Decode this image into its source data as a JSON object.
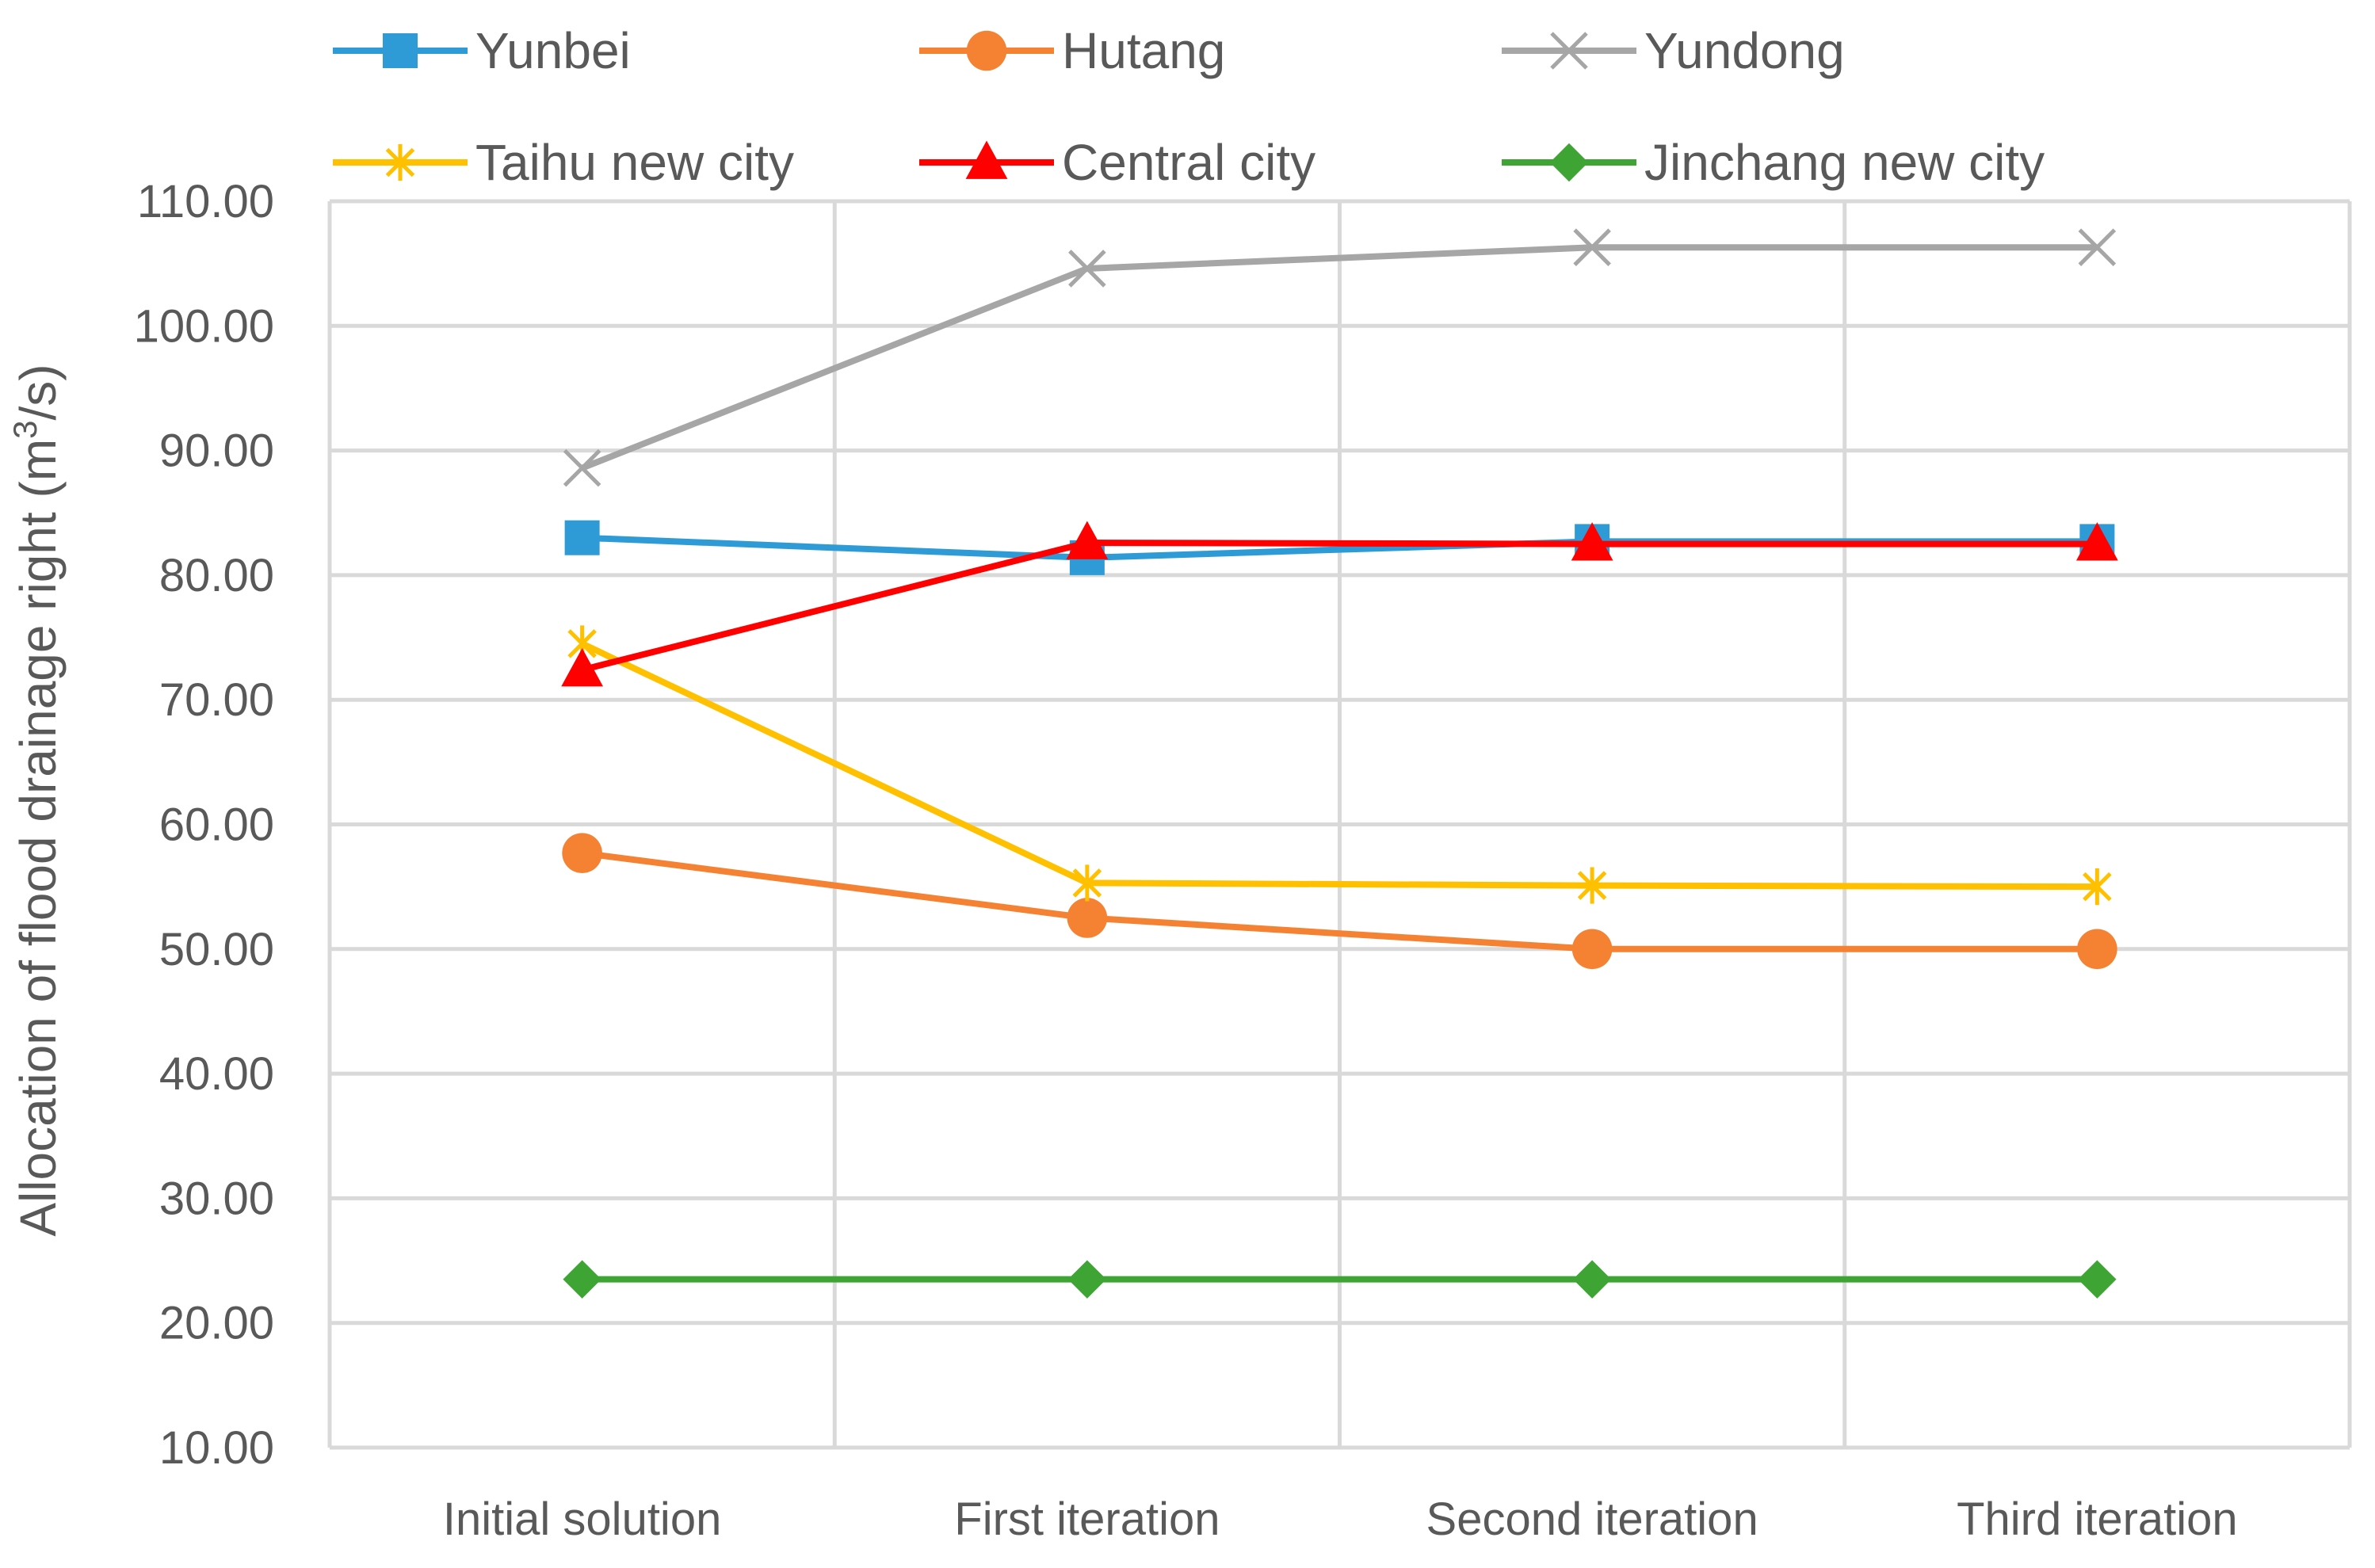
{
  "chart_data": {
    "type": "line",
    "title": "",
    "xlabel": "",
    "ylabel": "Allocation of flood drainage right (m",
    "ylabel_sup": "3",
    "ylabel_suffix": "/s)",
    "ylim": [
      10,
      110
    ],
    "y_step": 10,
    "y_tick_decimals": 2,
    "grid": true,
    "legend_position": "top",
    "categories": [
      "Initial solution",
      "First iteration",
      "Second iteration",
      "Third iteration"
    ],
    "series": [
      {
        "name": "Yunbei",
        "color": "#2e9bd6",
        "marker": "square",
        "values": [
          83.0,
          81.4,
          82.7,
          82.7
        ]
      },
      {
        "name": "Hutang",
        "color": "#f58232",
        "marker": "circle",
        "values": [
          57.7,
          52.5,
          50.0,
          50.0
        ]
      },
      {
        "name": "Yundong",
        "color": "#a6a6a6",
        "marker": "x",
        "values": [
          88.6,
          104.6,
          106.3,
          106.3
        ]
      },
      {
        "name": "Taihu new city",
        "color": "#ffc000",
        "marker": "star",
        "values": [
          74.5,
          55.3,
          55.1,
          55.0
        ]
      },
      {
        "name": "Central city",
        "color": "#ff0000",
        "marker": "triangle",
        "values": [
          72.4,
          82.6,
          82.5,
          82.5
        ]
      },
      {
        "name": "Jinchang new city",
        "color": "#3ea535",
        "marker": "diamond",
        "values": [
          23.5,
          23.5,
          23.5,
          23.5
        ]
      }
    ]
  }
}
